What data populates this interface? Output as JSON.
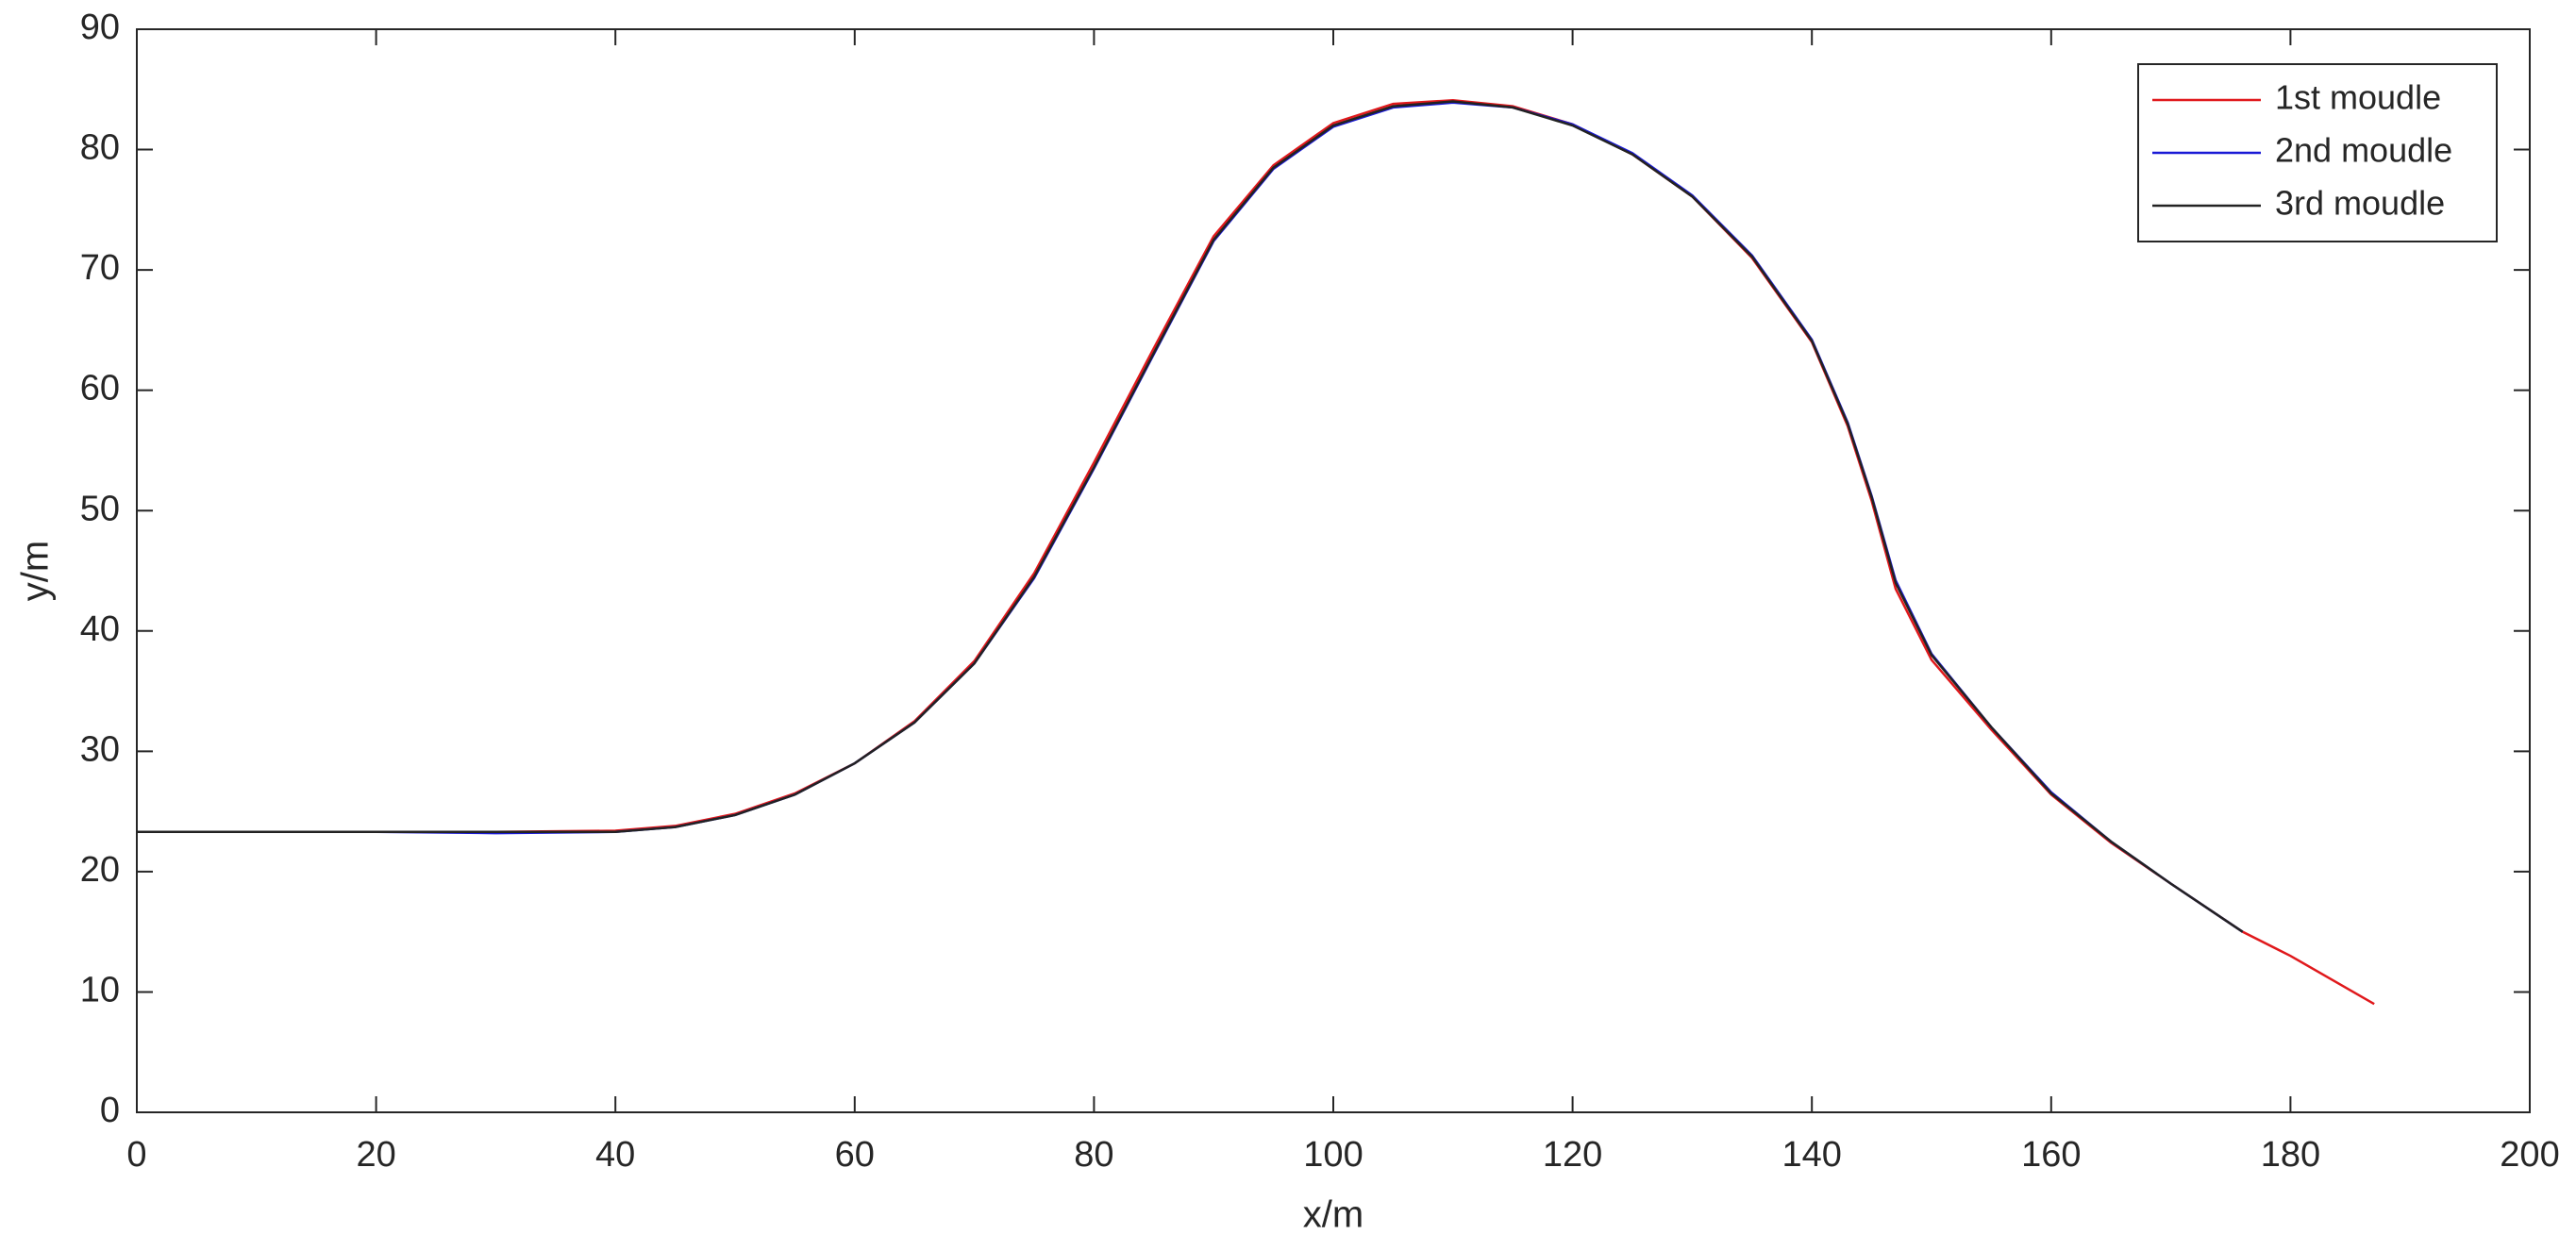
{
  "chart_data": {
    "type": "line",
    "xlabel": "x/m",
    "ylabel": "y/m",
    "x": [
      0,
      20,
      30,
      40,
      45,
      50,
      55,
      60,
      65,
      70,
      75,
      80,
      85,
      90,
      95,
      100,
      105,
      110,
      115,
      120,
      125,
      130,
      135,
      140,
      143,
      145,
      147,
      150,
      155,
      160,
      165,
      170,
      176,
      180,
      187
    ],
    "series": [
      {
        "name": "1st moudle",
        "color": "#e0191c",
        "values": [
          23.3,
          23.3,
          23.3,
          23.4,
          23.8,
          24.8,
          26.5,
          29,
          32.5,
          37.5,
          44.8,
          54,
          63.5,
          72.8,
          78.7,
          82.2,
          83.8,
          84.1,
          83.6,
          82.1,
          79.6,
          76.1,
          71,
          64,
          57,
          50.8,
          43.5,
          37.6,
          31.8,
          26.4,
          22.4,
          19,
          15,
          13,
          9
        ]
      },
      {
        "name": "2nd moudle",
        "color": "#1a1ad6",
        "values": [
          23.3,
          23.3,
          23.2,
          23.3,
          23.7,
          24.7,
          26.4,
          29,
          32.4,
          37.3,
          44.4,
          53.5,
          63,
          72.4,
          78.4,
          81.9,
          83.5,
          83.9,
          83.5,
          82.1,
          79.7,
          76.2,
          71.2,
          64.2,
          57.3,
          51.2,
          44.2,
          38.1,
          32,
          26.6,
          22.5,
          19,
          15,
          null,
          null
        ]
      },
      {
        "name": "3rd moudle",
        "color": "#222222",
        "values": [
          23.3,
          23.3,
          23.3,
          23.3,
          23.7,
          24.7,
          26.4,
          29,
          32.4,
          37.3,
          44.5,
          53.6,
          63.1,
          72.5,
          78.5,
          82,
          83.6,
          84,
          83.5,
          82,
          79.6,
          76.1,
          71.1,
          64.1,
          57.2,
          51.1,
          44,
          38,
          32,
          26.5,
          22.5,
          19,
          15,
          null,
          null
        ]
      }
    ],
    "xlim": [
      0,
      200
    ],
    "xticks": [
      0,
      20,
      40,
      60,
      80,
      100,
      120,
      140,
      160,
      180,
      200
    ],
    "ylim": [
      0,
      90
    ],
    "yticks": [
      0,
      10,
      20,
      30,
      40,
      50,
      60,
      70,
      80,
      90
    ],
    "legend": "top-right"
  }
}
